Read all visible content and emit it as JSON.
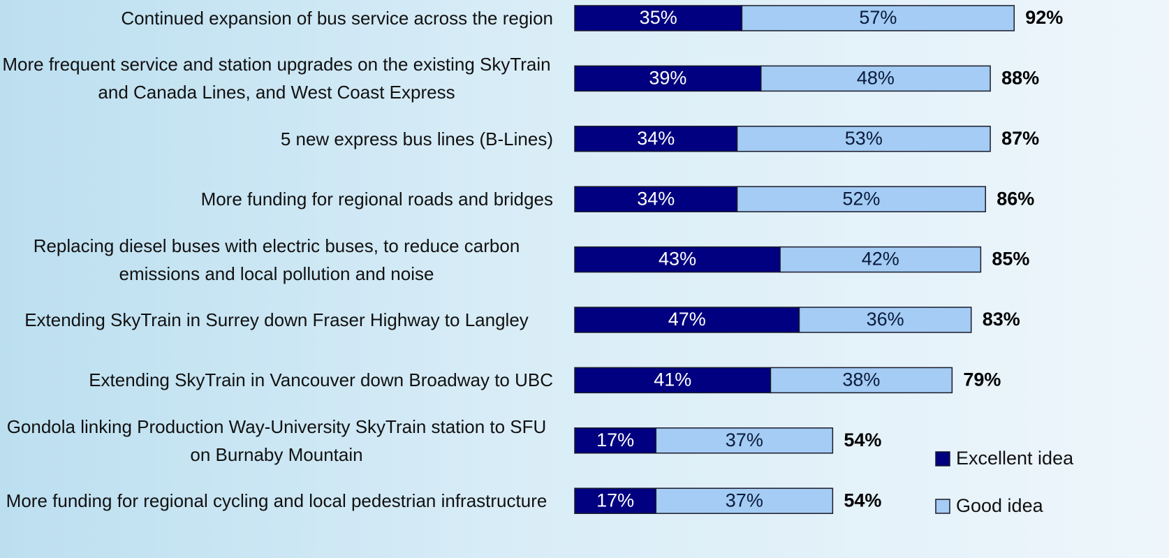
{
  "chart_data": {
    "type": "stacked-bar-horizontal",
    "categories": [
      "Continued expansion of bus service across the region",
      "More frequent service and station upgrades on the existing SkyTrain and Canada Lines, and West Coast Express",
      "5 new express bus lines (B-Lines)",
      "More funding for regional roads and bridges",
      "Replacing diesel buses with electric buses, to reduce carbon emissions and local pollution and noise",
      "Extending SkyTrain in Surrey down Fraser Highway to Langley",
      "Extending SkyTrain in Vancouver down Broadway to UBC",
      "Gondola linking Production Way-University SkyTrain station to SFU on Burnaby Mountain",
      "More funding for regional cycling and local pedestrian infrastructure"
    ],
    "series": [
      {
        "name": "Excellent idea",
        "color": "#000080",
        "values": [
          35,
          39,
          34,
          34,
          43,
          47,
          41,
          17,
          17
        ],
        "value_labels": [
          "35%",
          "39%",
          "34%",
          "34%",
          "43%",
          "47%",
          "41%",
          "17%",
          "17%"
        ]
      },
      {
        "name": "Good idea",
        "color": "#a4ccf4",
        "values": [
          57,
          48,
          53,
          52,
          42,
          36,
          38,
          37,
          37
        ],
        "value_labels": [
          "57%",
          "48%",
          "53%",
          "52%",
          "42%",
          "36%",
          "38%",
          "37%",
          "37%"
        ]
      }
    ],
    "totals": {
      "values": [
        92,
        88,
        87,
        86,
        85,
        83,
        79,
        54,
        54
      ],
      "value_labels": [
        "92%",
        "88%",
        "87%",
        "86%",
        "85%",
        "83%",
        "79%",
        "54%",
        "54%"
      ]
    },
    "xlim": [
      0,
      100
    ],
    "legend": "bottom-right"
  }
}
